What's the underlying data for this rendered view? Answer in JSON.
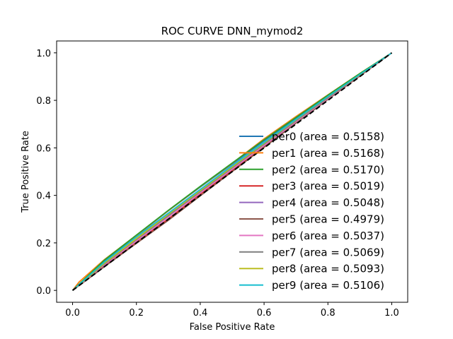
{
  "chart_data": {
    "type": "line",
    "title": "ROC CURVE DNN_mymod2",
    "xlabel": "False Positive Rate",
    "ylabel": "True Positive Rate",
    "xlim": [
      -0.05,
      1.05
    ],
    "ylim": [
      -0.05,
      1.05
    ],
    "xticks": [
      "0.0",
      "0.2",
      "0.4",
      "0.6",
      "0.8",
      "1.0"
    ],
    "yticks": [
      "0.0",
      "0.2",
      "0.4",
      "0.6",
      "0.8",
      "1.0"
    ],
    "grid": false,
    "legend_position": "lower right",
    "reference_line": {
      "x": [
        0,
        1
      ],
      "y": [
        0,
        1
      ],
      "style": "dashed",
      "color": "#000000"
    },
    "series": [
      {
        "name": "per0 (area = 0.5158)",
        "color": "#1f77b4",
        "x": [
          0,
          0.1,
          0.2,
          0.3,
          0.4,
          0.5,
          0.6,
          0.7,
          0.8,
          0.9,
          1.0
        ],
        "y": [
          0,
          0.125,
          0.23,
          0.335,
          0.435,
          0.532,
          0.63,
          0.725,
          0.82,
          0.912,
          1.0
        ]
      },
      {
        "name": "per1 (area = 0.5168)",
        "color": "#ff7f0e",
        "x": [
          0,
          0.02,
          0.1,
          0.2,
          0.3,
          0.4,
          0.5,
          0.6,
          0.7,
          0.8,
          0.9,
          1.0
        ],
        "y": [
          0,
          0.035,
          0.13,
          0.232,
          0.336,
          0.437,
          0.535,
          0.638,
          0.732,
          0.823,
          0.913,
          1.0
        ]
      },
      {
        "name": "per2 (area = 0.5170)",
        "color": "#2ca02c",
        "x": [
          0,
          0.1,
          0.2,
          0.3,
          0.4,
          0.5,
          0.6,
          0.7,
          0.8,
          0.9,
          1.0
        ],
        "y": [
          0,
          0.128,
          0.233,
          0.337,
          0.438,
          0.536,
          0.634,
          0.728,
          0.822,
          0.913,
          1.0
        ]
      },
      {
        "name": "per3 (area = 0.5019)",
        "color": "#d62728",
        "x": [
          0,
          0.1,
          0.2,
          0.3,
          0.4,
          0.5,
          0.6,
          0.7,
          0.8,
          0.9,
          1.0
        ],
        "y": [
          0,
          0.105,
          0.205,
          0.3,
          0.405,
          0.505,
          0.608,
          0.708,
          0.806,
          0.903,
          1.0
        ]
      },
      {
        "name": "per4 (area = 0.5048)",
        "color": "#9467bd",
        "x": [
          0,
          0.1,
          0.2,
          0.3,
          0.4,
          0.5,
          0.6,
          0.7,
          0.8,
          0.9,
          1.0
        ],
        "y": [
          0,
          0.11,
          0.21,
          0.31,
          0.412,
          0.512,
          0.612,
          0.71,
          0.808,
          0.905,
          1.0
        ]
      },
      {
        "name": "per5 (area = 0.4979)",
        "color": "#8c564b",
        "x": [
          0,
          0.1,
          0.2,
          0.3,
          0.4,
          0.5,
          0.6,
          0.7,
          0.8,
          0.9,
          1.0
        ],
        "y": [
          0,
          0.1,
          0.198,
          0.295,
          0.398,
          0.5,
          0.602,
          0.704,
          0.804,
          0.902,
          1.0
        ]
      },
      {
        "name": "per6 (area = 0.5037)",
        "color": "#e377c2",
        "x": [
          0,
          0.1,
          0.2,
          0.3,
          0.4,
          0.5,
          0.6,
          0.7,
          0.8,
          0.9,
          1.0
        ],
        "y": [
          0,
          0.108,
          0.208,
          0.308,
          0.41,
          0.51,
          0.61,
          0.71,
          0.808,
          0.905,
          1.0
        ]
      },
      {
        "name": "per7 (area = 0.5069)",
        "color": "#7f7f7f",
        "x": [
          0,
          0.1,
          0.2,
          0.3,
          0.4,
          0.5,
          0.6,
          0.7,
          0.8,
          0.9,
          1.0
        ],
        "y": [
          0,
          0.112,
          0.214,
          0.315,
          0.416,
          0.516,
          0.616,
          0.714,
          0.811,
          0.906,
          1.0
        ]
      },
      {
        "name": "per8 (area = 0.5093)",
        "color": "#bcbd22",
        "x": [
          0,
          0.1,
          0.2,
          0.3,
          0.4,
          0.5,
          0.6,
          0.7,
          0.8,
          0.9,
          1.0
        ],
        "y": [
          0,
          0.115,
          0.218,
          0.32,
          0.42,
          0.52,
          0.62,
          0.718,
          0.815,
          0.908,
          1.0
        ]
      },
      {
        "name": "per9 (area = 0.5106)",
        "color": "#17becf",
        "x": [
          0,
          0.1,
          0.2,
          0.3,
          0.4,
          0.5,
          0.6,
          0.7,
          0.8,
          0.9,
          1.0
        ],
        "y": [
          0,
          0.12,
          0.225,
          0.325,
          0.425,
          0.525,
          0.623,
          0.72,
          0.816,
          0.909,
          1.0
        ]
      }
    ]
  }
}
